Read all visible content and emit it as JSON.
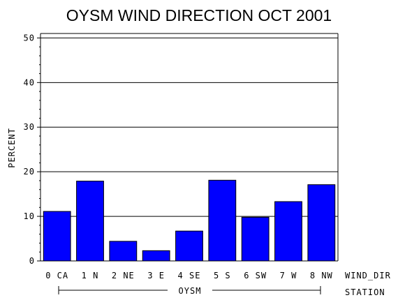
{
  "chart_data": {
    "type": "bar",
    "title": "OYSM WIND DIRECTION OCT 2001",
    "ylabel": "PERCENT",
    "xlabel": "WIND_DIR",
    "group_axis_label": "STATION",
    "group_label": "OYSM",
    "categories": [
      "0 CA",
      "1 N",
      "2 NE",
      "3 E",
      "4 SE",
      "5 S",
      "6 SW",
      "7 W",
      "8 NW"
    ],
    "values": [
      11.1,
      17.9,
      4.4,
      2.3,
      6.7,
      18.1,
      9.8,
      13.3,
      17.1
    ],
    "ylim": [
      0,
      51
    ],
    "yticks": [
      "0",
      "10",
      "20",
      "30",
      "40",
      "50"
    ],
    "grid": true,
    "bar_color": "#0000ff"
  }
}
